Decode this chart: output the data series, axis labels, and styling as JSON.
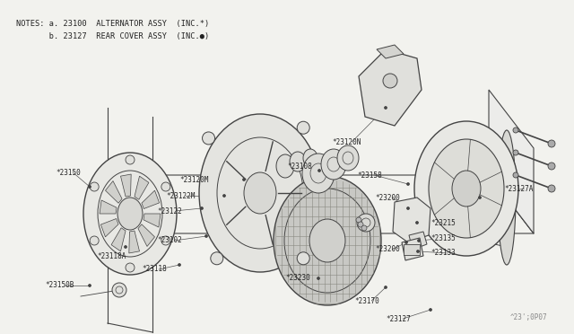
{
  "bg_color": "#f2f2ee",
  "lc": "#444444",
  "tc": "#222222",
  "notes_line1": "NOTES: a. 23100  ALTERNATOR ASSY  (INC.*)",
  "notes_line2": "       b. 23127  REAR COVER ASSY  (INC.●)",
  "watermark": "^23';0P07",
  "fig_w": 6.4,
  "fig_h": 3.72,
  "dpi": 100
}
